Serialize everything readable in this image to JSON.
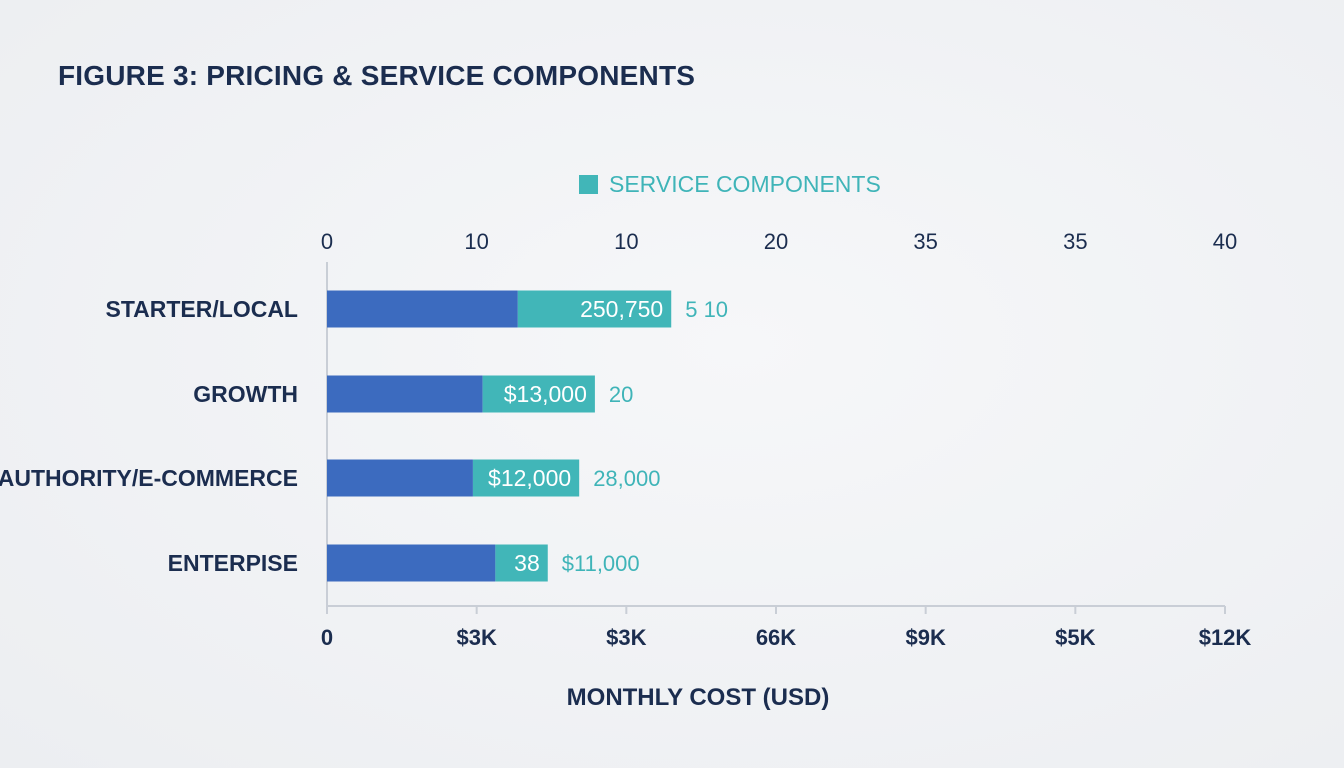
{
  "title": "FIGURE 3: PRICING & SERVICE COMPONENTS",
  "colors": {
    "base": "#3c6bbf",
    "service": "#41b6b8",
    "text": "#1b2d4f",
    "axis": "#c9ced6"
  },
  "chart_data": {
    "type": "bar",
    "orientation": "horizontal",
    "stacked": true,
    "title": "FIGURE 3: PRICING & SERVICE COMPONENTS",
    "legend": {
      "placement": "top-center",
      "entries": [
        "SERVICE COMPONENTS"
      ]
    },
    "xlabel": "MONTHLY COST (USD)",
    "ylabel": "",
    "xlim": [
      0,
      12
    ],
    "x_ticks": [
      0,
      2,
      4,
      6,
      8,
      10,
      12
    ],
    "bottom_tick_labels": [
      "0",
      "$3K",
      "$3K",
      "66K",
      "$9K",
      "$5K",
      "$12K"
    ],
    "top_tick_labels": [
      "0",
      "10",
      "10",
      "20",
      "35",
      "35",
      "40"
    ],
    "grid": false,
    "categories": [
      "STARTER/LOCAL",
      "GROWTH",
      "AUTHORITY/E-COMMERCE",
      "ENTERPISE"
    ],
    "series": [
      {
        "values": [
          2.55,
          2.08,
          1.95,
          2.25
        ],
        "labels": [
          "",
          "",
          "",
          ""
        ]
      },
      {
        "name": "SERVICE COMPONENTS",
        "values": [
          2.05,
          1.5,
          1.42,
          0.7
        ],
        "labels": [
          "250,750",
          "$13,000",
          "$12,000",
          "38"
        ]
      }
    ],
    "outer_labels": [
      "5 10",
      "20",
      "28,000",
      "$11,000"
    ]
  }
}
